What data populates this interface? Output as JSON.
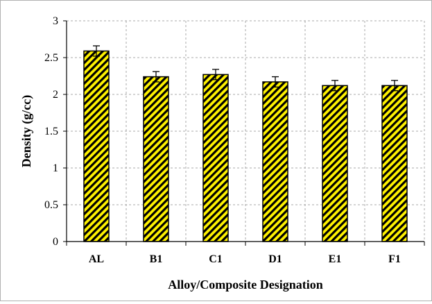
{
  "chart_data": {
    "type": "bar",
    "title": "",
    "xlabel": "Alloy/Composite Designation",
    "ylabel": "Density (g/cc)",
    "categories": [
      "AL",
      "B1",
      "C1",
      "D1",
      "E1",
      "F1"
    ],
    "values": [
      2.59,
      2.24,
      2.27,
      2.17,
      2.12,
      2.12
    ],
    "error": [
      0.07,
      0.07,
      0.07,
      0.07,
      0.07,
      0.07
    ],
    "ylim": [
      0,
      3
    ],
    "yticks": [
      "0",
      "0.5",
      "1",
      "1.5",
      "2",
      "2.5",
      "3"
    ],
    "grid": true,
    "grid_style": "dashed",
    "legend": "none",
    "bar_fill": "#fff200",
    "bar_hatch": "#000000"
  }
}
